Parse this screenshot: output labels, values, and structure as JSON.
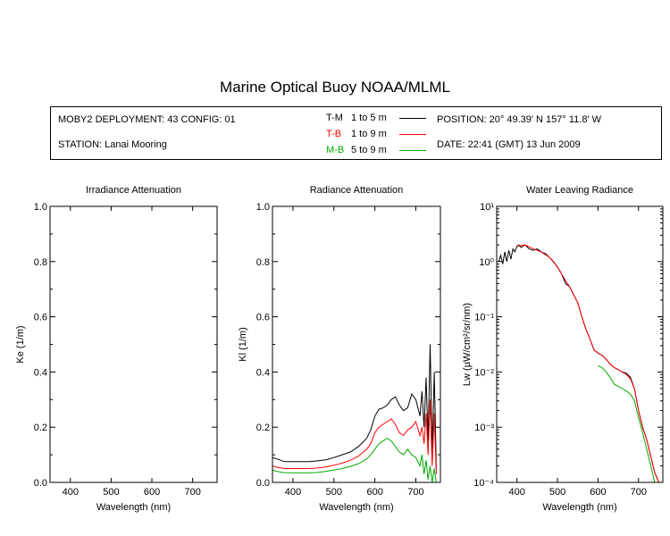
{
  "title": "Marine Optical Buoy NOAA/MLML",
  "info": {
    "deployment": "MOBY2 DEPLOYMENT: 43 CONFIG: 01",
    "station": "STATION: Lanai Mooring",
    "position": "POSITION: 20° 49.39' N   157° 11.8' W",
    "date": "DATE: 22:41 (GMT) 13 Jun 2009"
  },
  "legend": [
    {
      "code": "T-M",
      "range": "1 to 5  m",
      "color": "#000000"
    },
    {
      "code": "T-B",
      "range": "1 to 9  m",
      "color": "#ff0000"
    },
    {
      "code": "M-B",
      "range": "5 to 9  m",
      "color": "#00aa00"
    }
  ],
  "chart_data": [
    {
      "type": "line",
      "title": "Irradiance Attenuation",
      "xlabel": "Wavelength (nm)",
      "ylabel": "Ke  (1/m)",
      "xlim": [
        350,
        760
      ],
      "ylim": [
        0,
        1
      ],
      "xticks": [
        "400",
        "500",
        "600",
        "700"
      ],
      "yticks": [
        "0.0",
        "0.2",
        "0.4",
        "0.6",
        "0.8",
        "1.0"
      ],
      "series": []
    },
    {
      "type": "line",
      "title": "Radiance Attenuation",
      "xlabel": "Wavelength (nm)",
      "ylabel": "Kl  (1/m)",
      "xlim": [
        350,
        760
      ],
      "ylim": [
        0,
        1
      ],
      "xticks": [
        "400",
        "500",
        "600",
        "700"
      ],
      "yticks": [
        "0.0",
        "0.2",
        "0.4",
        "0.6",
        "0.8",
        "1.0"
      ],
      "series": [
        {
          "color": "#000000",
          "x": [
            350,
            360,
            380,
            400,
            420,
            440,
            460,
            480,
            500,
            520,
            540,
            560,
            580,
            590,
            600,
            610,
            620,
            630,
            640,
            650,
            660,
            670,
            680,
            690,
            700,
            710,
            715,
            720,
            725,
            730,
            735,
            740,
            745,
            750
          ],
          "y": [
            0.09,
            0.085,
            0.075,
            0.075,
            0.075,
            0.075,
            0.078,
            0.082,
            0.09,
            0.1,
            0.11,
            0.13,
            0.16,
            0.19,
            0.24,
            0.265,
            0.27,
            0.28,
            0.3,
            0.31,
            0.28,
            0.26,
            0.27,
            0.32,
            0.3,
            0.24,
            0.33,
            0.2,
            0.38,
            0.15,
            0.5,
            0.1,
            0.4,
            0.05
          ]
        },
        {
          "color": "#ff0000",
          "x": [
            350,
            360,
            380,
            400,
            420,
            440,
            460,
            480,
            500,
            520,
            540,
            560,
            580,
            590,
            600,
            610,
            620,
            630,
            640,
            650,
            660,
            670,
            680,
            690,
            700,
            710,
            715,
            720,
            725,
            730,
            735,
            740,
            745,
            750
          ],
          "y": [
            0.06,
            0.055,
            0.05,
            0.05,
            0.05,
            0.05,
            0.052,
            0.056,
            0.062,
            0.07,
            0.08,
            0.095,
            0.12,
            0.14,
            0.18,
            0.2,
            0.21,
            0.22,
            0.23,
            0.21,
            0.18,
            0.17,
            0.19,
            0.2,
            0.22,
            0.17,
            0.2,
            0.14,
            0.25,
            0.1,
            0.3,
            0.06,
            0.25,
            0.03
          ]
        },
        {
          "color": "#00aa00",
          "x": [
            350,
            360,
            380,
            400,
            420,
            440,
            460,
            480,
            500,
            520,
            540,
            560,
            580,
            590,
            600,
            610,
            620,
            630,
            640,
            650,
            660,
            670,
            680,
            690,
            700,
            710,
            715,
            720,
            725,
            730,
            735,
            740,
            745,
            750
          ],
          "y": [
            0.045,
            0.04,
            0.035,
            0.035,
            0.035,
            0.035,
            0.036,
            0.04,
            0.045,
            0.05,
            0.058,
            0.068,
            0.085,
            0.1,
            0.12,
            0.14,
            0.15,
            0.16,
            0.15,
            0.13,
            0.11,
            0.1,
            0.12,
            0.1,
            0.09,
            0.06,
            0.1,
            0.03,
            0.08,
            0.01,
            0.06,
            0.0,
            0.05,
            0.0
          ]
        }
      ]
    },
    {
      "type": "line",
      "title": "Water Leaving Radiance",
      "xlabel": "Wavelength (nm)",
      "ylabel": "Lw  (µW/cm²/sr/nm)",
      "xlim": [
        350,
        760
      ],
      "ylim": [
        0.0001,
        10
      ],
      "yscale": "log",
      "xticks": [
        "400",
        "500",
        "600",
        "700"
      ],
      "yticks": [
        "10⁻⁴",
        "10⁻³",
        "10⁻²",
        "10⁻¹",
        "10⁰",
        "10¹"
      ],
      "series": [
        {
          "color": "#000000",
          "x": [
            355,
            360,
            365,
            370,
            375,
            380,
            385,
            390,
            395,
            400,
            405,
            410,
            420,
            430,
            440,
            450,
            460,
            470,
            480,
            490,
            500,
            510,
            520,
            530,
            540,
            550,
            560,
            570,
            580,
            590,
            600,
            610,
            620,
            630,
            640,
            650,
            660,
            670,
            680,
            690,
            700,
            710,
            720,
            730,
            740,
            750
          ],
          "y": [
            1.0,
            1.3,
            0.9,
            1.5,
            1.0,
            1.6,
            1.1,
            1.7,
            1.5,
            1.9,
            2.0,
            1.8,
            2.0,
            1.7,
            1.6,
            1.7,
            1.5,
            1.4,
            1.2,
            1.0,
            0.8,
            0.6,
            0.4,
            0.35,
            0.25,
            0.18,
            0.1,
            0.06,
            0.04,
            0.025,
            0.022,
            0.02,
            0.017,
            0.014,
            0.012,
            0.011,
            0.01,
            0.0095,
            0.008,
            0.005,
            0.002,
            0.001,
            0.0006,
            0.0003,
            0.00015,
            0.0001
          ]
        },
        {
          "color": "#ff0000",
          "x": [
            400,
            420,
            440,
            460,
            480,
            500,
            510,
            520,
            530,
            540,
            550,
            560,
            570,
            580,
            590,
            600,
            610,
            620,
            630,
            640,
            650,
            660,
            670,
            680,
            690,
            700,
            710,
            720,
            730,
            740,
            750
          ],
          "y": [
            1.9,
            2.0,
            1.7,
            1.5,
            1.2,
            0.8,
            0.6,
            0.45,
            0.35,
            0.25,
            0.18,
            0.1,
            0.06,
            0.04,
            0.025,
            0.022,
            0.02,
            0.017,
            0.014,
            0.012,
            0.011,
            0.01,
            0.009,
            0.0075,
            0.005,
            0.002,
            0.001,
            0.0006,
            0.0003,
            0.00015,
            0.0001
          ]
        },
        {
          "color": "#00aa00",
          "x": [
            600,
            610,
            620,
            630,
            640,
            650,
            660,
            670,
            680,
            690,
            700,
            710,
            720,
            730,
            740,
            745
          ],
          "y": [
            0.013,
            0.012,
            0.01,
            0.008,
            0.006,
            0.0055,
            0.005,
            0.0045,
            0.004,
            0.003,
            0.0015,
            0.0008,
            0.0004,
            0.0002,
            0.0001,
            8e-05
          ]
        }
      ]
    }
  ]
}
